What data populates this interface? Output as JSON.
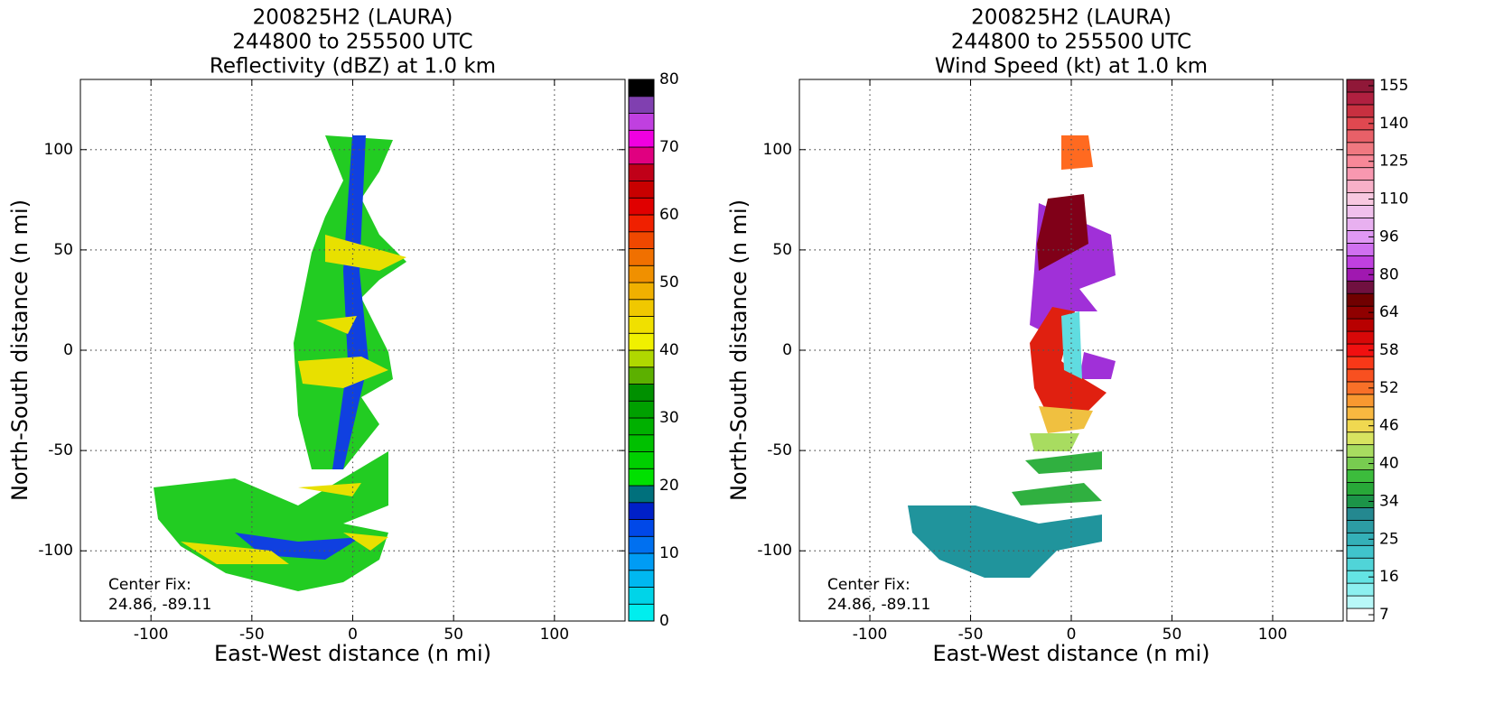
{
  "chart_data": [
    {
      "type": "radar",
      "title": [
        "200825H2 (LAURA)",
        "244800 to 255500 UTC",
        "Reflectivity (dBZ) at 1.0 km"
      ],
      "xlabel": "East-West distance (n mi)",
      "ylabel": "North-South distance (n mi)",
      "xlim": [
        -135,
        135
      ],
      "ylim": [
        -135,
        135
      ],
      "xticks": [
        -100,
        -50,
        0,
        50,
        100
      ],
      "yticks": [
        -100,
        -50,
        0,
        50,
        100
      ],
      "grid": true,
      "annotation": [
        "Center Fix:",
        "24.86, -89.11"
      ],
      "clim": [
        0,
        80
      ],
      "cticks": [
        0,
        10,
        20,
        30,
        40,
        50,
        60,
        70,
        80
      ],
      "colors": [
        "#00eeee",
        "#00d4e8",
        "#00b8f0",
        "#009cf4",
        "#0070f0",
        "#0048e8",
        "#0020c8",
        "#00707c",
        "#00e000",
        "#00d000",
        "#00c000",
        "#00b000",
        "#00a000",
        "#009000",
        "#5cb000",
        "#b0d800",
        "#f0f000",
        "#f0e000",
        "#f0c800",
        "#f0b000",
        "#f09000",
        "#f07000",
        "#f04800",
        "#f02000",
        "#e00000",
        "#c80000",
        "#c00018",
        "#e00080",
        "#f000e0",
        "#c040e0",
        "#8040b0",
        "#000000"
      ]
    },
    {
      "type": "radar",
      "title": [
        "200825H2 (LAURA)",
        "244800 to 255500 UTC",
        "Wind Speed (kt) at 1.0 km"
      ],
      "xlabel": "East-West distance (n mi)",
      "ylabel": "North-South distance (n mi)",
      "xlim": [
        -135,
        135
      ],
      "ylim": [
        -135,
        135
      ],
      "xticks": [
        -100,
        -50,
        0,
        50,
        100
      ],
      "yticks": [
        -100,
        -50,
        0,
        50,
        100
      ],
      "grid": true,
      "annotation": [
        "Center Fix:",
        "24.86, -89.11"
      ],
      "cticks": [
        7,
        16,
        25,
        34,
        40,
        46,
        52,
        58,
        64,
        80,
        96,
        110,
        125,
        140,
        155
      ],
      "colors": [
        "#ffffff",
        "#b8f8f8",
        "#8cf0f0",
        "#64e4e4",
        "#50d4d8",
        "#40c4cc",
        "#34b0b8",
        "#2c9ca4",
        "#248890",
        "#1c9448",
        "#28a838",
        "#3cbc3c",
        "#78cc50",
        "#a8dc60",
        "#d8e460",
        "#f0d850",
        "#f8b840",
        "#f89830",
        "#f87028",
        "#f85020",
        "#f83818",
        "#f01010",
        "#d80808",
        "#b80000",
        "#900000",
        "#700000",
        "#701040",
        "#a018b0",
        "#c040e0",
        "#d070f0",
        "#e098f4",
        "#e8b0f0",
        "#f0c0ec",
        "#f8c8e0",
        "#f8b0c8",
        "#f898b0",
        "#f88898",
        "#f07880",
        "#e86068",
        "#e04850",
        "#c83040",
        "#b02040",
        "#901838"
      ]
    }
  ]
}
